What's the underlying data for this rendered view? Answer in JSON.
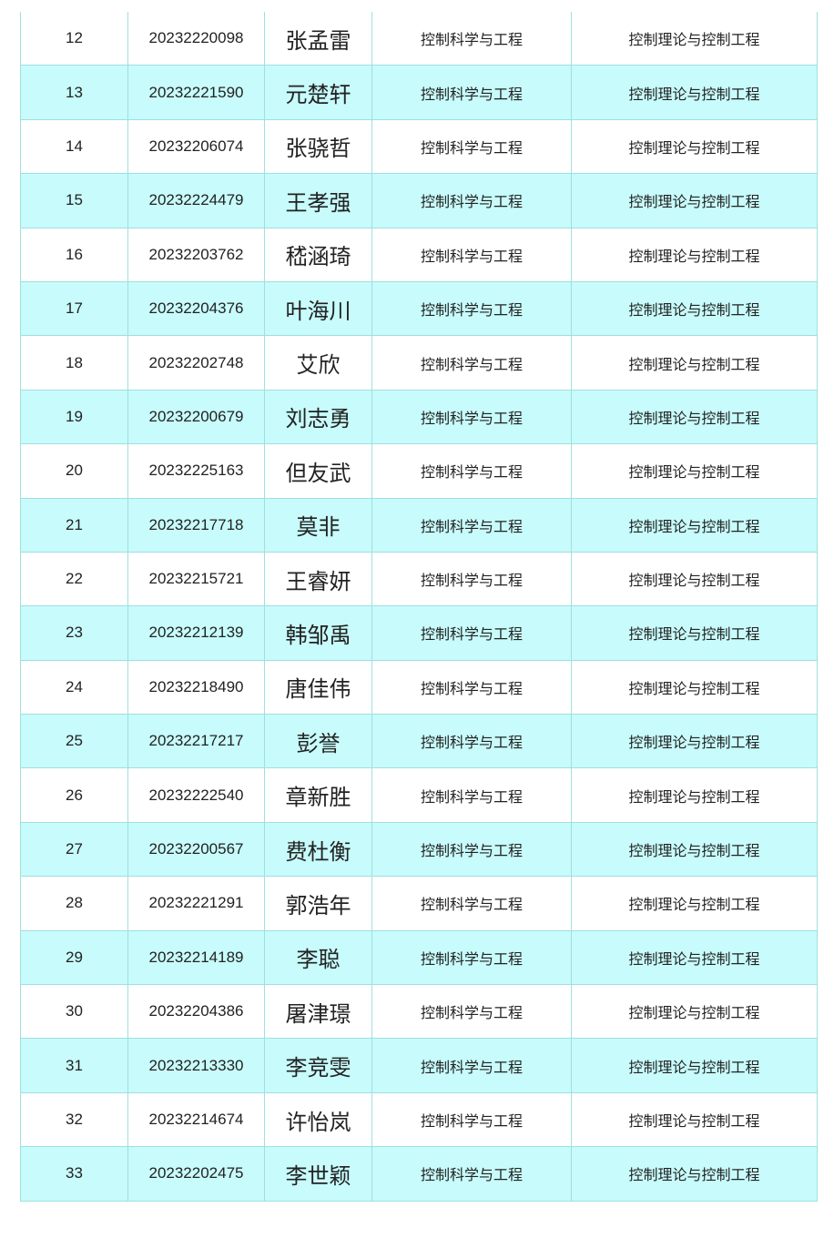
{
  "colors": {
    "row_alt": "#c8fbfb",
    "border": "#9fdfe0"
  },
  "rows": [
    {
      "no": "12",
      "id": "20232220098",
      "name": "张孟雷",
      "school": "控制科学与工程",
      "major": "控制理论与控制工程"
    },
    {
      "no": "13",
      "id": "20232221590",
      "name": "元楚轩",
      "school": "控制科学与工程",
      "major": "控制理论与控制工程"
    },
    {
      "no": "14",
      "id": "20232206074",
      "name": "张骁哲",
      "school": "控制科学与工程",
      "major": "控制理论与控制工程"
    },
    {
      "no": "15",
      "id": "20232224479",
      "name": "王孝强",
      "school": "控制科学与工程",
      "major": "控制理论与控制工程"
    },
    {
      "no": "16",
      "id": "20232203762",
      "name": "嵇涵琦",
      "school": "控制科学与工程",
      "major": "控制理论与控制工程"
    },
    {
      "no": "17",
      "id": "20232204376",
      "name": "叶海川",
      "school": "控制科学与工程",
      "major": "控制理论与控制工程"
    },
    {
      "no": "18",
      "id": "20232202748",
      "name": "艾欣",
      "school": "控制科学与工程",
      "major": "控制理论与控制工程"
    },
    {
      "no": "19",
      "id": "20232200679",
      "name": "刘志勇",
      "school": "控制科学与工程",
      "major": "控制理论与控制工程"
    },
    {
      "no": "20",
      "id": "20232225163",
      "name": "但友武",
      "school": "控制科学与工程",
      "major": "控制理论与控制工程"
    },
    {
      "no": "21",
      "id": "20232217718",
      "name": "莫非",
      "school": "控制科学与工程",
      "major": "控制理论与控制工程"
    },
    {
      "no": "22",
      "id": "20232215721",
      "name": "王睿妍",
      "school": "控制科学与工程",
      "major": "控制理论与控制工程"
    },
    {
      "no": "23",
      "id": "20232212139",
      "name": "韩邹禹",
      "school": "控制科学与工程",
      "major": "控制理论与控制工程"
    },
    {
      "no": "24",
      "id": "20232218490",
      "name": "唐佳伟",
      "school": "控制科学与工程",
      "major": "控制理论与控制工程"
    },
    {
      "no": "25",
      "id": "20232217217",
      "name": "彭誉",
      "school": "控制科学与工程",
      "major": "控制理论与控制工程"
    },
    {
      "no": "26",
      "id": "20232222540",
      "name": "章新胜",
      "school": "控制科学与工程",
      "major": "控制理论与控制工程"
    },
    {
      "no": "27",
      "id": "20232200567",
      "name": "费杜衡",
      "school": "控制科学与工程",
      "major": "控制理论与控制工程"
    },
    {
      "no": "28",
      "id": "20232221291",
      "name": "郭浩年",
      "school": "控制科学与工程",
      "major": "控制理论与控制工程"
    },
    {
      "no": "29",
      "id": "20232214189",
      "name": "李聪",
      "school": "控制科学与工程",
      "major": "控制理论与控制工程"
    },
    {
      "no": "30",
      "id": "20232204386",
      "name": "屠津璟",
      "school": "控制科学与工程",
      "major": "控制理论与控制工程"
    },
    {
      "no": "31",
      "id": "20232213330",
      "name": "李竞雯",
      "school": "控制科学与工程",
      "major": "控制理论与控制工程"
    },
    {
      "no": "32",
      "id": "20232214674",
      "name": "许怡岚",
      "school": "控制科学与工程",
      "major": "控制理论与控制工程"
    },
    {
      "no": "33",
      "id": "20232202475",
      "name": "李世颖",
      "school": "控制科学与工程",
      "major": "控制理论与控制工程"
    }
  ]
}
